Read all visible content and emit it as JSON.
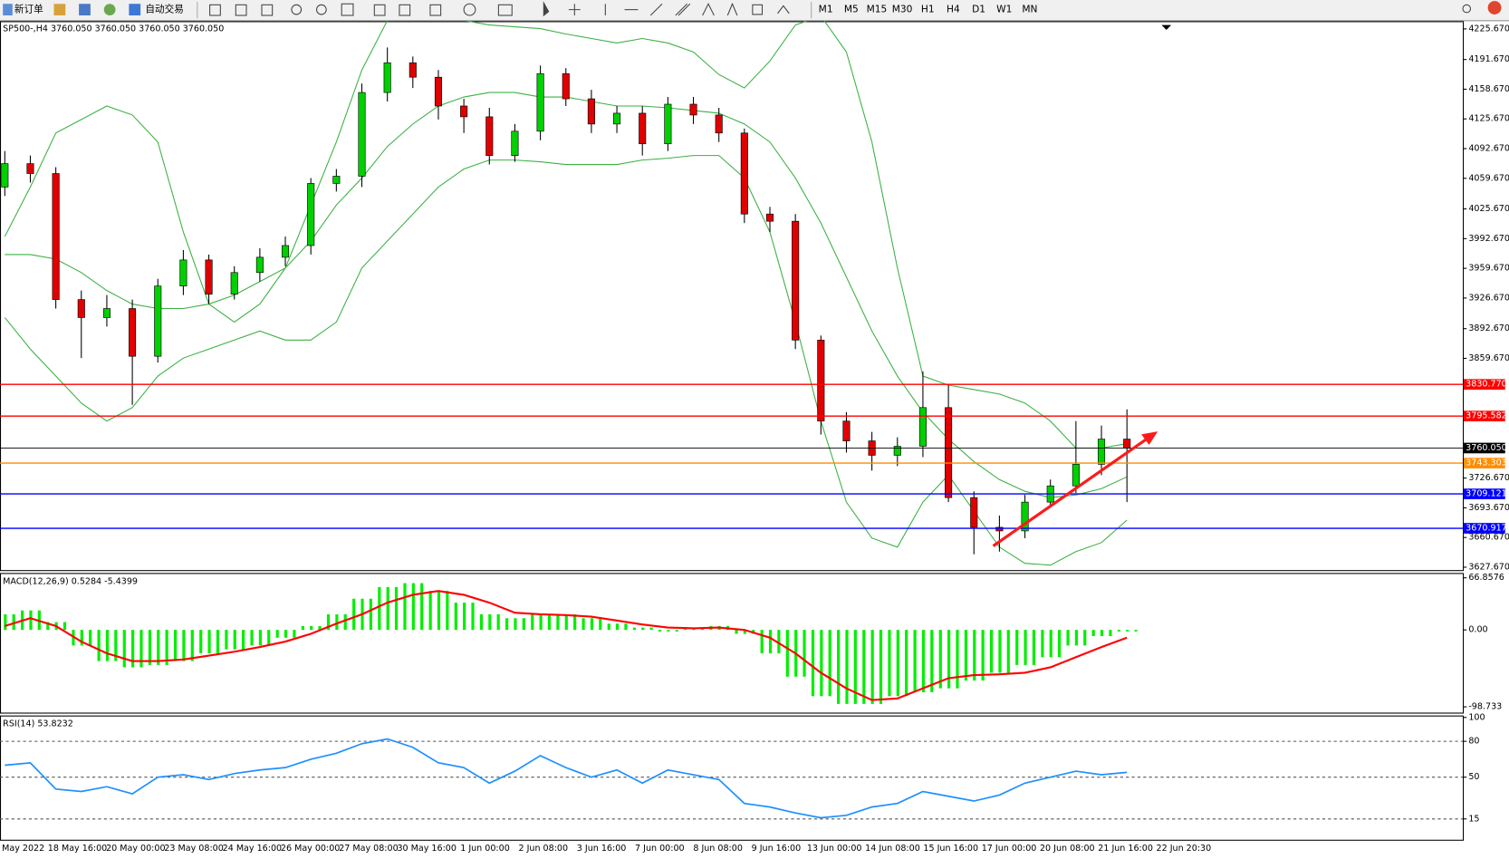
{
  "toolbar": {
    "new_order": "新订单",
    "auto_trading": "自动交易",
    "timeframes": [
      "M1",
      "M5",
      "M15",
      "M30",
      "H1",
      "H4",
      "D1",
      "W1",
      "MN"
    ]
  },
  "time_axis": {
    "labels": [
      "May 2022",
      "18 May 16:00",
      "20 May 00:00",
      "23 May 08:00",
      "24 May 16:00",
      "26 May 00:00",
      "27 May 08:00",
      "30 May 16:00",
      "1 Jun 00:00",
      "2 Jun 08:00",
      "3 Jun 16:00",
      "7 Jun 00:00",
      "8 Jun 08:00",
      "9 Jun 16:00",
      "13 Jun 00:00",
      "14 Jun 08:00",
      "15 Jun 16:00",
      "17 Jun 00:00",
      "20 Jun 08:00",
      "21 Jun 16:00",
      "22 Jun 20:30"
    ]
  },
  "chart_data": [
    {
      "type": "candlestick",
      "title": "SP500-,H4 3760.050 3760.050 3760.050 3760.050",
      "up_color": "#00d000",
      "down_color": "#e00000",
      "open": [
        4050,
        4076,
        4065,
        3925,
        3905,
        3915,
        3862,
        3940,
        3969,
        3931,
        3955,
        3972,
        3985,
        4054,
        4062,
        4155,
        4188,
        4172,
        4140,
        4128,
        4085,
        4112,
        4176,
        4148,
        4120,
        4132,
        4098,
        4142,
        4130,
        4110,
        4020,
        4012,
        3880,
        3790,
        3768,
        3752,
        3762,
        3805,
        3705,
        3672,
        3668,
        3700,
        3718,
        3742,
        3770
      ],
      "high": [
        4090,
        4085,
        4072,
        3935,
        3930,
        3925,
        3948,
        3980,
        3975,
        3962,
        3982,
        3995,
        4060,
        4070,
        4165,
        4205,
        4195,
        4180,
        4148,
        4138,
        4120,
        4185,
        4182,
        4158,
        4140,
        4140,
        4150,
        4150,
        4138,
        4115,
        4028,
        4020,
        3885,
        3800,
        3778,
        3772,
        3845,
        3830,
        3712,
        3685,
        3708,
        3725,
        3790,
        3785,
        3803
      ],
      "low": [
        4040,
        4055,
        3915,
        3860,
        3895,
        3808,
        3855,
        3930,
        3920,
        3925,
        3945,
        3962,
        3975,
        4045,
        4050,
        4145,
        4160,
        4125,
        4110,
        4075,
        4078,
        4102,
        4140,
        4110,
        4110,
        4085,
        4090,
        4120,
        4100,
        4010,
        4000,
        3870,
        3775,
        3755,
        3735,
        3740,
        3750,
        3700,
        3642,
        3645,
        3660,
        3695,
        3710,
        3730,
        3700
      ],
      "close": [
        4076,
        4065,
        3925,
        3905,
        3915,
        3862,
        3940,
        3969,
        3931,
        3955,
        3972,
        3985,
        4054,
        4062,
        4155,
        4188,
        4172,
        4140,
        4128,
        4085,
        4112,
        4176,
        4148,
        4120,
        4132,
        4098,
        4142,
        4130,
        4110,
        4020,
        4012,
        3880,
        3790,
        3768,
        3752,
        3762,
        3805,
        3705,
        3672,
        3668,
        3700,
        3718,
        3742,
        3770,
        3760.05
      ],
      "series": [
        {
          "color": "#3cb043",
          "values": [
            3995,
            4050,
            4110,
            4125,
            4140,
            4130,
            4100,
            4000,
            3920,
            3900,
            3920,
            3960,
            4030,
            4100,
            4180,
            4235,
            4240,
            4240,
            4235,
            4230,
            4228,
            4226,
            4220,
            4215,
            4210,
            4215,
            4210,
            4200,
            4175,
            4160,
            4190,
            4230,
            4240,
            4200,
            4100,
            3960,
            3840,
            3830,
            3825,
            3820,
            3810,
            3790,
            3760,
            3760,
            3765
          ]
        },
        {
          "color": "#3cb043",
          "values": [
            3975,
            3975,
            3970,
            3955,
            3935,
            3920,
            3915,
            3915,
            3920,
            3930,
            3945,
            3960,
            3990,
            4030,
            4060,
            4095,
            4120,
            4140,
            4150,
            4155,
            4155,
            4150,
            4150,
            4145,
            4140,
            4140,
            4138,
            4135,
            4132,
            4120,
            4100,
            4060,
            4010,
            3950,
            3890,
            3840,
            3800,
            3770,
            3745,
            3725,
            3712,
            3705,
            3708,
            3715,
            3728
          ]
        },
        {
          "color": "#3cb043",
          "values": [
            3905,
            3870,
            3840,
            3810,
            3790,
            3805,
            3840,
            3860,
            3870,
            3880,
            3890,
            3880,
            3880,
            3900,
            3960,
            3990,
            4020,
            4050,
            4070,
            4080,
            4080,
            4078,
            4075,
            4075,
            4075,
            4080,
            4082,
            4085,
            4085,
            4060,
            4000,
            3900,
            3790,
            3700,
            3660,
            3650,
            3700,
            3730,
            3690,
            3650,
            3632,
            3630,
            3645,
            3655,
            3680
          ]
        }
      ],
      "levels": [
        {
          "value": 3830.77,
          "label": "3830.770",
          "color": "#ff0000"
        },
        {
          "value": 3795.582,
          "label": "3795.582",
          "color": "#ff0000"
        },
        {
          "value": 3760.05,
          "label": "3760.050",
          "color": "#000000"
        },
        {
          "value": 3743.303,
          "label": "3743.303",
          "color": "#ff8c00"
        },
        {
          "value": 3709.121,
          "label": "3709.121",
          "color": "#0000ff"
        },
        {
          "value": 3670.917,
          "label": "3670.917",
          "color": "#0000ff"
        }
      ],
      "ylim": [
        3627.67,
        4225.67
      ],
      "yticks": [
        {
          "value": 4225.67,
          "label": "4225.670"
        },
        {
          "value": 4191.67,
          "label": "4191.670"
        },
        {
          "value": 4158.67,
          "label": "4158.670"
        },
        {
          "value": 4125.67,
          "label": "4125.670"
        },
        {
          "value": 4092.67,
          "label": "4092.670"
        },
        {
          "value": 4059.67,
          "label": "4059.670"
        },
        {
          "value": 4025.67,
          "label": "4025.670"
        },
        {
          "value": 3992.67,
          "label": "3992.670"
        },
        {
          "value": 3959.67,
          "label": "3959.670"
        },
        {
          "value": 3926.67,
          "label": "3926.670"
        },
        {
          "value": 3892.67,
          "label": "3892.670"
        },
        {
          "value": 3859.67,
          "label": "3859.670"
        },
        {
          "value": 3726.67,
          "label": "3726.670"
        },
        {
          "value": 3693.67,
          "label": "3693.670"
        },
        {
          "value": 3660.67,
          "label": "3660.670"
        },
        {
          "value": 3627.67,
          "label": "3627.670"
        }
      ]
    },
    {
      "type": "macd",
      "title": "MACD(12,26,9) 0.5284 -5.4399",
      "series": [
        {
          "kind": "bar",
          "color": "#00ee00",
          "values": [
            20,
            25,
            10,
            -20,
            -40,
            -48,
            -45,
            -40,
            -30,
            -25,
            -20,
            -10,
            5,
            20,
            40,
            55,
            60,
            50,
            35,
            20,
            15,
            20,
            20,
            15,
            8,
            3,
            -2,
            2,
            5,
            -5,
            -30,
            -60,
            -85,
            -95,
            -95,
            -85,
            -80,
            -75,
            -65,
            -55,
            -45,
            -35,
            -20,
            -8,
            -2
          ]
        },
        {
          "kind": "line",
          "color": "#ff0000",
          "values": [
            5,
            15,
            5,
            -15,
            -30,
            -40,
            -40,
            -38,
            -33,
            -28,
            -22,
            -15,
            -5,
            8,
            20,
            35,
            45,
            50,
            45,
            35,
            22,
            20,
            19,
            17,
            12,
            7,
            3,
            2,
            3,
            0,
            -10,
            -30,
            -55,
            -75,
            -90,
            -88,
            -75,
            -62,
            -58,
            -57,
            -55,
            -48,
            -35,
            -22,
            -10
          ]
        }
      ],
      "ylim": [
        -98.733,
        66.8576
      ],
      "yticks": [
        66.8576,
        {
          "value": 0,
          "label": "0.00"
        },
        -98.733
      ]
    },
    {
      "type": "line",
      "title": "RSI(14) 53.8232",
      "series": [
        {
          "color": "#1e90ff",
          "values": [
            60,
            62,
            40,
            38,
            42,
            36,
            50,
            52,
            48,
            53,
            56,
            58,
            65,
            70,
            78,
            82,
            75,
            62,
            58,
            45,
            55,
            68,
            58,
            50,
            56,
            45,
            56,
            52,
            48,
            28,
            25,
            20,
            16,
            18,
            25,
            28,
            38,
            34,
            30,
            35,
            45,
            50,
            55,
            52,
            54
          ]
        }
      ],
      "ylim": [
        0,
        100
      ],
      "yticks": [
        100,
        80,
        50,
        15
      ],
      "grid_dashed": [
        80,
        50,
        15
      ]
    }
  ]
}
